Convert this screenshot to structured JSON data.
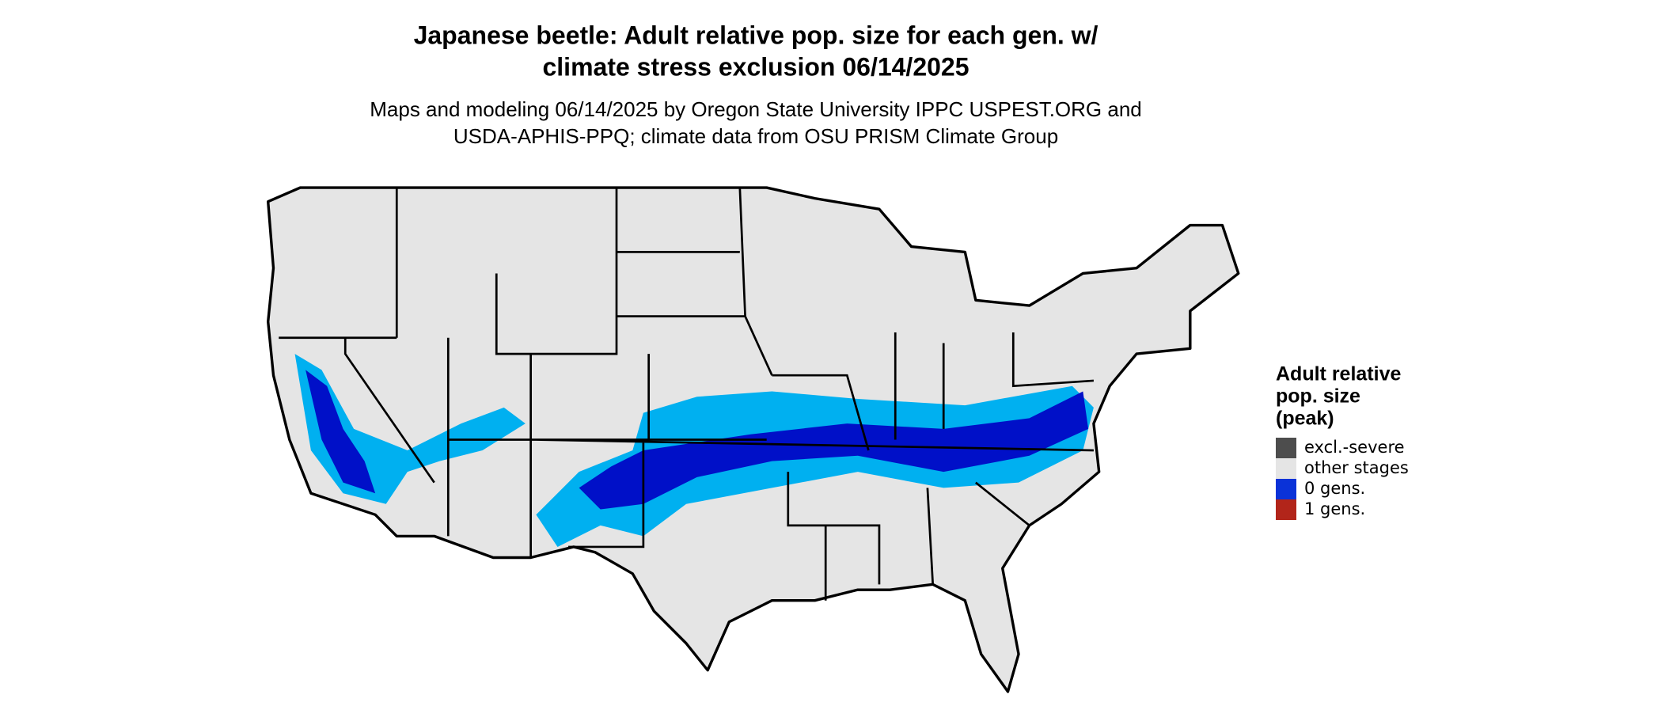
{
  "header": {
    "title": [
      "Japanese beetle: Adult relative pop. size for each gen. w/",
      "climate stress exclusion 06/14/2025"
    ],
    "subtitle": [
      "Maps and modeling 06/14/2025 by Oregon State University IPPC USPEST.ORG and",
      "USDA-APHIS-PPQ; climate data from OSU PRISM Climate Group"
    ]
  },
  "legend": {
    "title": [
      "Adult relative",
      "pop. size",
      "(peak)"
    ],
    "items": [
      {
        "label": "excl.-severe",
        "color": "#4d4d4d"
      },
      {
        "label": "other stages",
        "color": "#e5e5e5"
      },
      {
        "label": "0 gens.",
        "color": "#0a32d8"
      },
      {
        "label": "1 gens.",
        "color": "#b2251a"
      }
    ]
  }
}
